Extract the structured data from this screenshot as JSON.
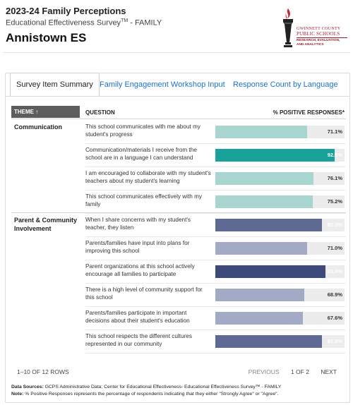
{
  "header": {
    "title": "2023-24 Family Perceptions",
    "subtitle": "Educational Effectiveness Survey",
    "subtitle_tm": "TM",
    "subtitle_suffix": " - FAMILY",
    "school": "Annistown ES"
  },
  "logo": {
    "line1": "GWINNETT COUNTY",
    "line2": "PUBLIC SCHOOLS",
    "line3": "RESEARCH, EVALUATION, AND ANALYTICS"
  },
  "tabs": [
    {
      "label": "Survey Item Summary",
      "active": true
    },
    {
      "label": "Family Engagement Workshop Input",
      "active": false
    },
    {
      "label": "Response Count by Language",
      "active": false
    }
  ],
  "table": {
    "col_theme": "THEME ↑",
    "col_question": "QUESTION",
    "col_pct": "% POSITIVE RESPONSES*",
    "groups": [
      {
        "theme": "Communication",
        "rows": [
          {
            "question": "This school communicates with me about my student's progress",
            "pct": 71.1,
            "label": "71.1%",
            "color": "#a8d5d0"
          },
          {
            "question": "Communication/materials I receive from the school are in a language I can understand",
            "pct": 92.6,
            "label": "92.6%",
            "color": "#18a29a"
          },
          {
            "question": "I am encouraged to collaborate with my student's teachers about my student's learning",
            "pct": 76.1,
            "label": "76.1%",
            "color": "#a8d5d0"
          },
          {
            "question": "This school communicates effectively with my family",
            "pct": 75.2,
            "label": "75.2%",
            "color": "#a8d5d0"
          }
        ]
      },
      {
        "theme": "Parent & Community Involvement",
        "rows": [
          {
            "question": "When I share concerns with my student's teacher, they listen",
            "pct": 82.3,
            "label": "82.3%",
            "color": "#5f6a94"
          },
          {
            "question": "Parents/families have input into plans for improving this school",
            "pct": 71.0,
            "label": "71.0%",
            "color": "#a3aac6"
          },
          {
            "question": "Parent organizations at this school actively encourage all families to participate",
            "pct": 85.4,
            "label": "85.4%",
            "color": "#3e4a7a"
          },
          {
            "question": "There is a high level of community support for this school",
            "pct": 68.9,
            "label": "68.9%",
            "color": "#a3aac6"
          },
          {
            "question": "Parents/families participate in important decisions about their student's education",
            "pct": 67.6,
            "label": "67.6%",
            "color": "#a3aac6"
          },
          {
            "question": "This school respects the different cultures represented in our community",
            "pct": 82.5,
            "label": "82.5%",
            "color": "#5f6a94"
          }
        ]
      }
    ]
  },
  "pagination": {
    "rows_info": "1–10 OF 12 ROWS",
    "previous": "PREVIOUS",
    "page": "1 OF 2",
    "next": "NEXT"
  },
  "notes": {
    "sources_label": "Data Sources:",
    "sources_text": " GCPS Administrative Data; Center for Educational Effectiveness- Educational Effectiveness Survey™ - FAMILY",
    "note_label": "Note:",
    "note_text": " % Positive Responses represents the percentage of respondents indicating that they either \"Strongly Agree\" or \"Agree\"."
  }
}
